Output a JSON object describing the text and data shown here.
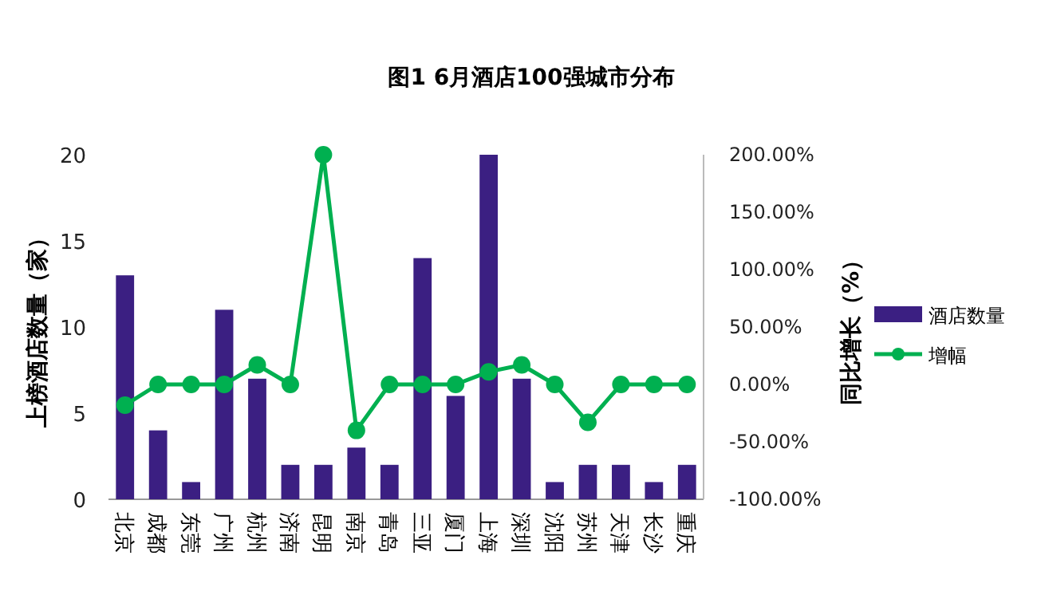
{
  "chart_data": {
    "type": "bar",
    "title": "图1 6月酒店100强城市分布",
    "ylabel": "上榜酒店数量（家）",
    "y2label": "同比增长（%）",
    "categories": [
      "北京",
      "成都",
      "东莞",
      "广州",
      "杭州",
      "济南",
      "昆明",
      "南京",
      "青岛",
      "三亚",
      "厦门",
      "上海",
      "深圳",
      "沈阳",
      "苏州",
      "天津",
      "长沙",
      "重庆"
    ],
    "series": [
      {
        "name": "酒店数量",
        "color": "#3b1f82",
        "values": [
          13,
          4,
          1,
          11,
          7,
          2,
          2,
          3,
          2,
          14,
          6,
          20,
          7,
          1,
          2,
          2,
          1,
          2
        ]
      },
      {
        "name": "增幅",
        "type": "line",
        "axis": "y2",
        "color": "#00b050",
        "marker": "circle",
        "values": [
          -18,
          0,
          0,
          0,
          17,
          0,
          200,
          -40,
          0,
          0,
          0,
          11,
          17,
          0,
          -33,
          0,
          0,
          0
        ]
      }
    ],
    "ylim": [
      0,
      20
    ],
    "yticks": [
      0,
      5,
      10,
      15,
      20
    ],
    "y2lim": [
      -100,
      200
    ],
    "y2ticks": [
      {
        "value": -100,
        "label": "-100.00%"
      },
      {
        "value": -50,
        "label": "-50.00%"
      },
      {
        "value": 0,
        "label": "0.00%"
      },
      {
        "value": 50,
        "label": "50.00%"
      },
      {
        "value": 100,
        "label": "100.00%"
      },
      {
        "value": 150,
        "label": "150.00%"
      },
      {
        "value": 200,
        "label": "200.00%"
      }
    ],
    "grid": false,
    "legend": "right"
  }
}
